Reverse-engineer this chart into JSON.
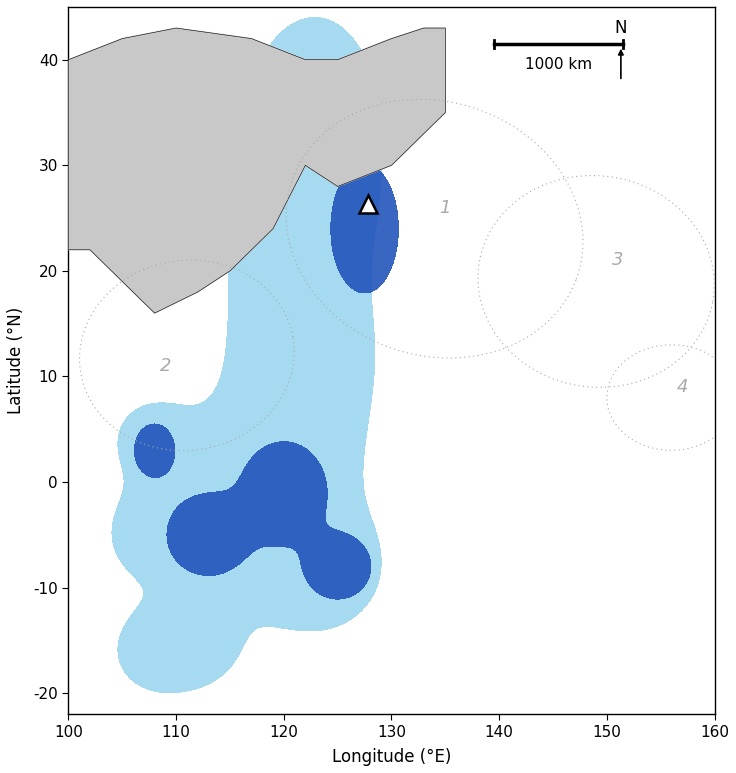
{
  "lon_min": 100,
  "lon_max": 160,
  "lat_min": -22,
  "lat_max": 45,
  "xlabel": "Longitude (°E)",
  "ylabel": "Latitude (°N)",
  "land_color": "#c8c8c8",
  "ocean_color": "#ffffff",
  "light_blue": "#87ceeb",
  "dark_blue": "#2255bb",
  "typhoon_color": "#aaaaaa",
  "triangle_lon": 127.8,
  "triangle_lat": 26.3,
  "zone_labels": [
    {
      "text": "1",
      "lon": 135,
      "lat": 26
    },
    {
      "text": "2",
      "lon": 109,
      "lat": 11
    },
    {
      "text": "3",
      "lon": 151,
      "lat": 21
    },
    {
      "text": "4",
      "lon": 157,
      "lat": 9
    }
  ],
  "north_label_lon": 154,
  "north_label_lat": 43,
  "scalebar_lon1": 140,
  "scalebar_lon2": 150,
  "scalebar_lat": 42.0
}
